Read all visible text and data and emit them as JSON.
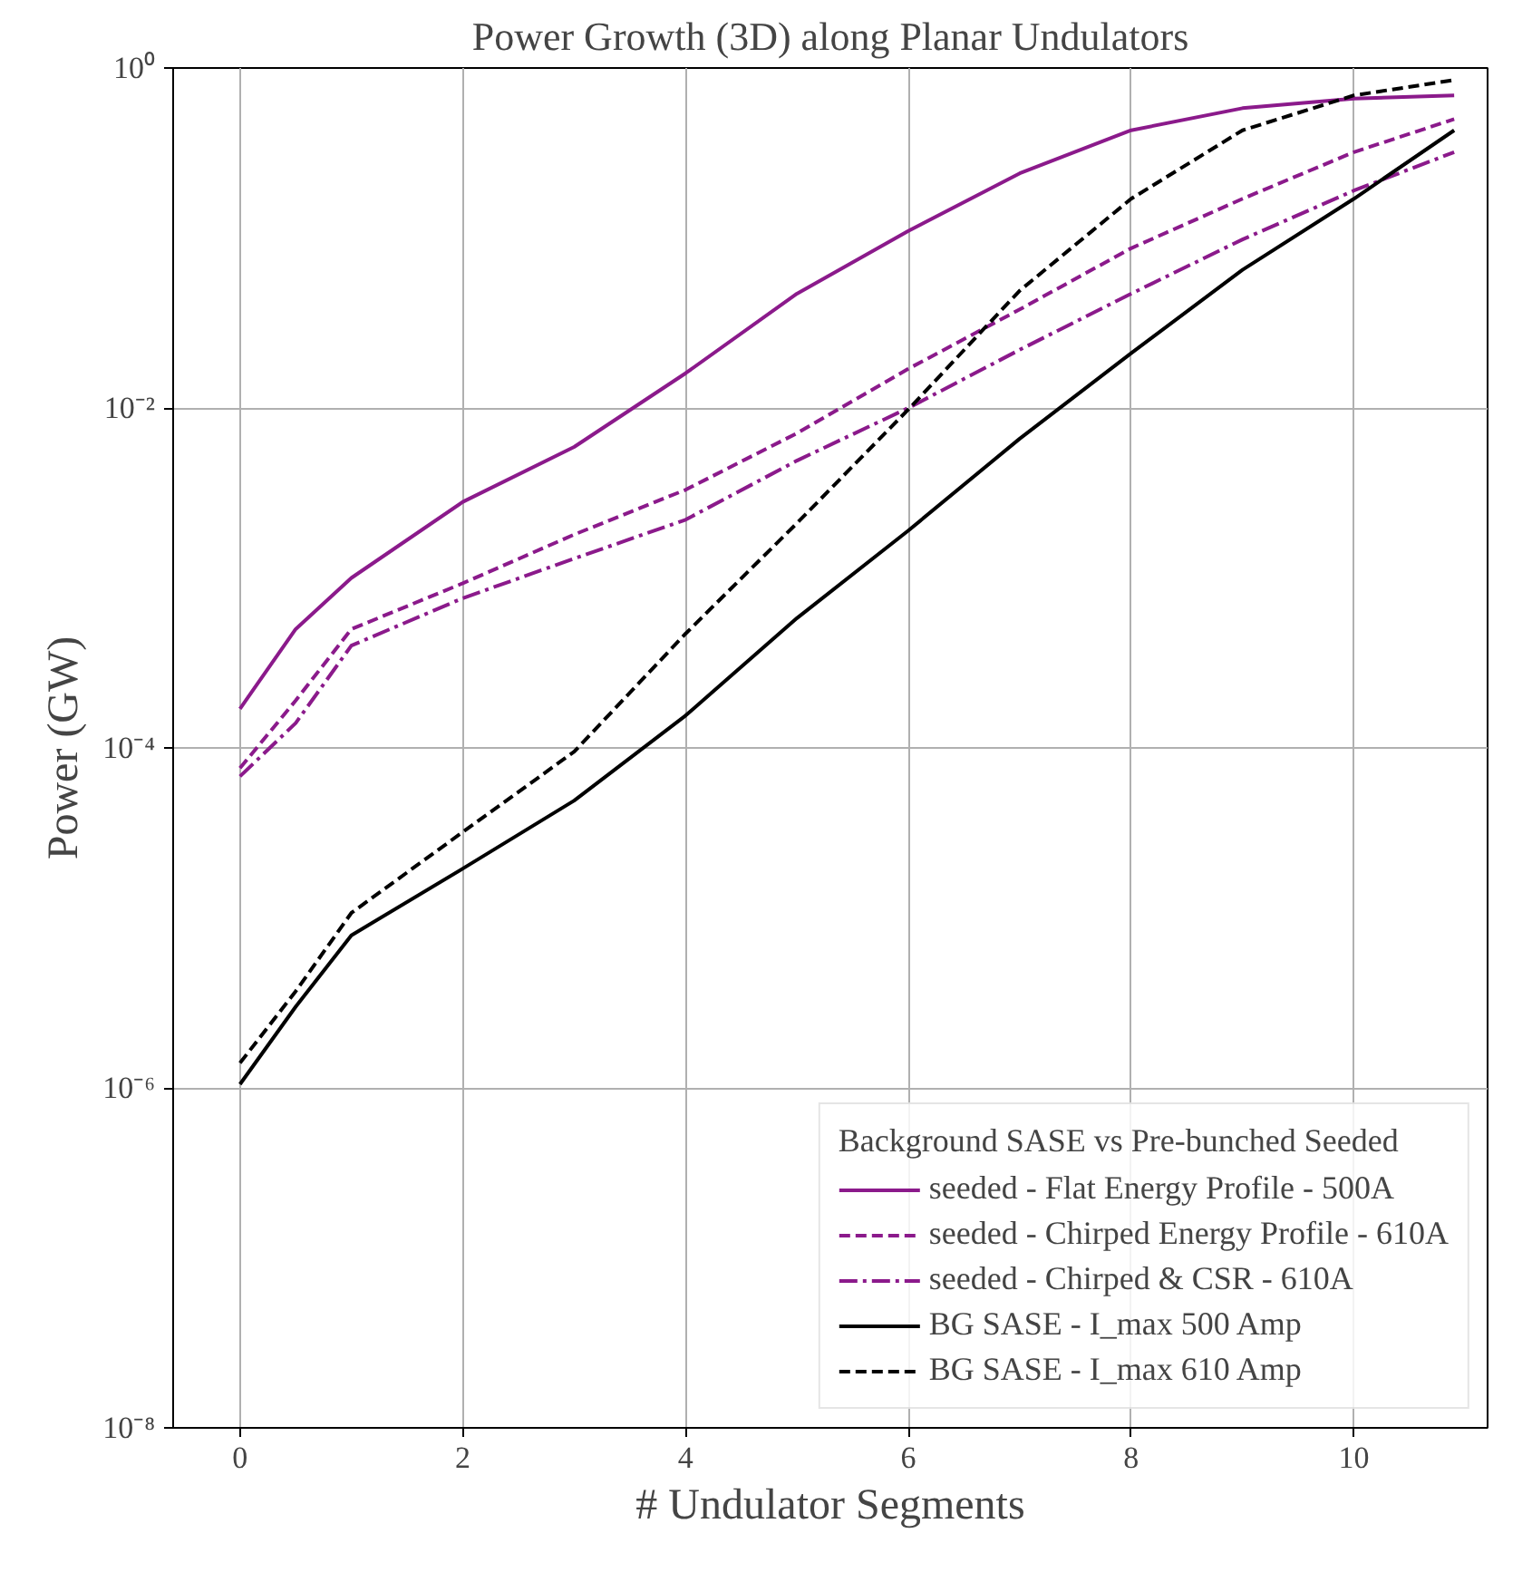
{
  "chart_data": {
    "type": "line",
    "title": "Power Growth (3D) along Planar Undulators",
    "xlabel": "# Undulator Segments",
    "ylabel": "Power (GW)",
    "legend_title": "Background SASE vs Pre-bunched Seeded",
    "legend": "bottom right",
    "grid": true,
    "log": "y",
    "marker": "none",
    "x": [
      0,
      0.5,
      1,
      2,
      3,
      4,
      5,
      6,
      7,
      8,
      9,
      10,
      10.9
    ],
    "xlim": [
      -0.6,
      11.2
    ],
    "xticks": [
      0,
      2,
      4,
      6,
      8,
      10
    ],
    "ylim": [
      1e-08,
      1
    ],
    "yticks": [
      {
        "value": 1e-08,
        "label": "10⁻⁸"
      },
      {
        "value": 1e-06,
        "label": "10⁻⁶"
      },
      {
        "value": 0.0001,
        "label": "10⁻⁴"
      },
      {
        "value": 0.01,
        "label": "10⁻²"
      },
      {
        "value": 1,
        "label": "10⁰"
      }
    ],
    "series": [
      {
        "name": "seeded - Flat Energy Profile - 500A",
        "color": "#8b1a8b",
        "line_style": "solid",
        "values": [
          0.00017,
          0.0005,
          0.001,
          0.0028,
          0.0059,
          0.016,
          0.047,
          0.11,
          0.24,
          0.43,
          0.58,
          0.66,
          0.69
        ]
      },
      {
        "name": "seeded - Chirped Energy Profile - 610A",
        "color": "#8b1a8b",
        "line_style": "dashed",
        "values": [
          7.6e-05,
          0.00019,
          0.0005,
          0.00093,
          0.0018,
          0.0033,
          0.0071,
          0.017,
          0.038,
          0.087,
          0.17,
          0.32,
          0.5
        ]
      },
      {
        "name": "seeded - Chirped & CSR - 610A",
        "color": "#8b1a8b",
        "line_style": "dashdot",
        "values": [
          6.8e-05,
          0.00014,
          0.0004,
          0.00076,
          0.0013,
          0.0022,
          0.0049,
          0.01,
          0.022,
          0.047,
          0.098,
          0.19,
          0.32
        ]
      },
      {
        "name": "BG SASE - I_max 500 Amp",
        "color": "#000000",
        "line_style": "solid",
        "values": [
          1.05e-06,
          3e-06,
          7.9e-06,
          1.95e-05,
          4.9e-05,
          0.000155,
          0.00058,
          0.0019,
          0.0066,
          0.021,
          0.065,
          0.17,
          0.43
        ]
      },
      {
        "name": "BG SASE - I_max 610 Amp",
        "color": "#000000",
        "line_style": "dashed",
        "values": [
          1.4e-06,
          3.7e-06,
          1.07e-05,
          3.2e-05,
          9.5e-05,
          0.00047,
          0.0021,
          0.0098,
          0.049,
          0.17,
          0.43,
          0.69,
          0.85
        ]
      }
    ]
  }
}
